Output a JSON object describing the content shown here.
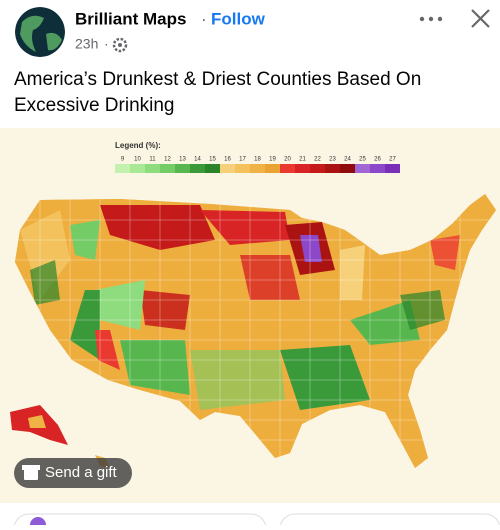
{
  "post": {
    "author": "Brilliant Maps",
    "follow": "Follow",
    "time": "23h",
    "text": "America’s Drunkest & Driest Counties Based On Excessive Drinking",
    "gift_button": "Send a gift"
  },
  "map": {
    "legend": {
      "title": "Legend (%):",
      "values": [
        9,
        10,
        11,
        12,
        13,
        14,
        15,
        16,
        17,
        18,
        19,
        20,
        21,
        22,
        23,
        24,
        25,
        26,
        27
      ],
      "colors": [
        "#c4f2ae",
        "#a9e996",
        "#8fdc7e",
        "#74cc66",
        "#57b64e",
        "#3a9a3a",
        "#2a842a",
        "#f6d17a",
        "#f3c25c",
        "#efb345",
        "#eaa233",
        "#ea3a30",
        "#d82424",
        "#c41a1a",
        "#ab1212",
        "#900c0c",
        "#a066d4",
        "#8c48c8",
        "#7a30b6"
      ]
    }
  }
}
